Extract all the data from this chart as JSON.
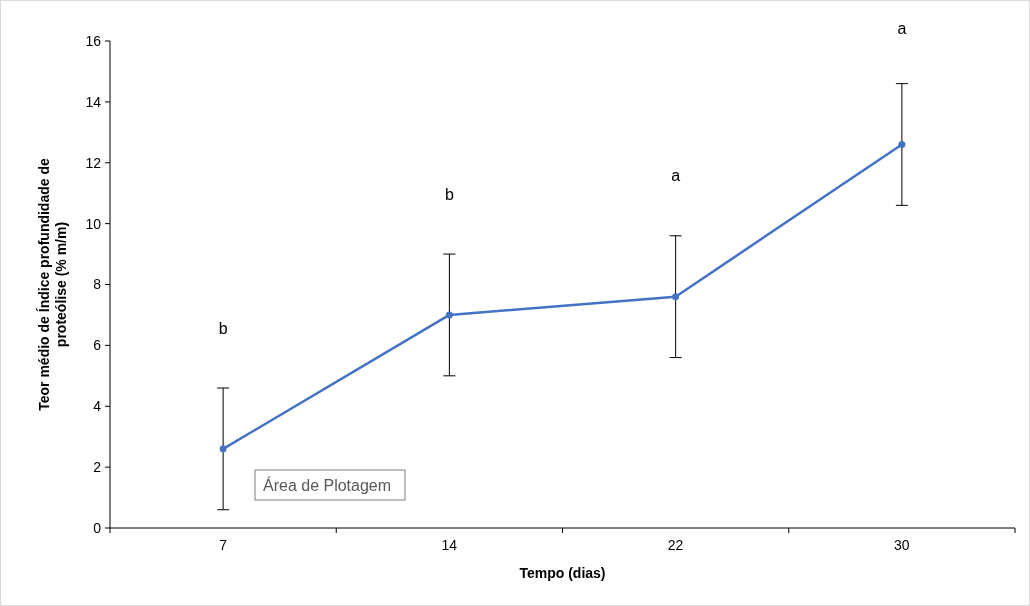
{
  "chart_data": {
    "type": "line",
    "xlabel": "Tempo (dias)",
    "ylabel": "Teor médio de Índice profundidade de proteólise (% m/m)",
    "categories": [
      "7",
      "14",
      "22",
      "30"
    ],
    "series": [
      {
        "color": "#4472c4",
        "values": [
          2.6,
          7.0,
          7.6,
          12.6
        ],
        "errors": [
          2,
          2,
          2,
          2
        ]
      }
    ],
    "ylim": [
      0,
      16
    ],
    "yticks": [
      0,
      2,
      4,
      6,
      8,
      10,
      12,
      14,
      16
    ],
    "marker": "circle",
    "line_style": "solid",
    "grid": false,
    "annotations": [
      "b",
      "b",
      "a",
      "a",
      "Área de Plotagem"
    ]
  }
}
